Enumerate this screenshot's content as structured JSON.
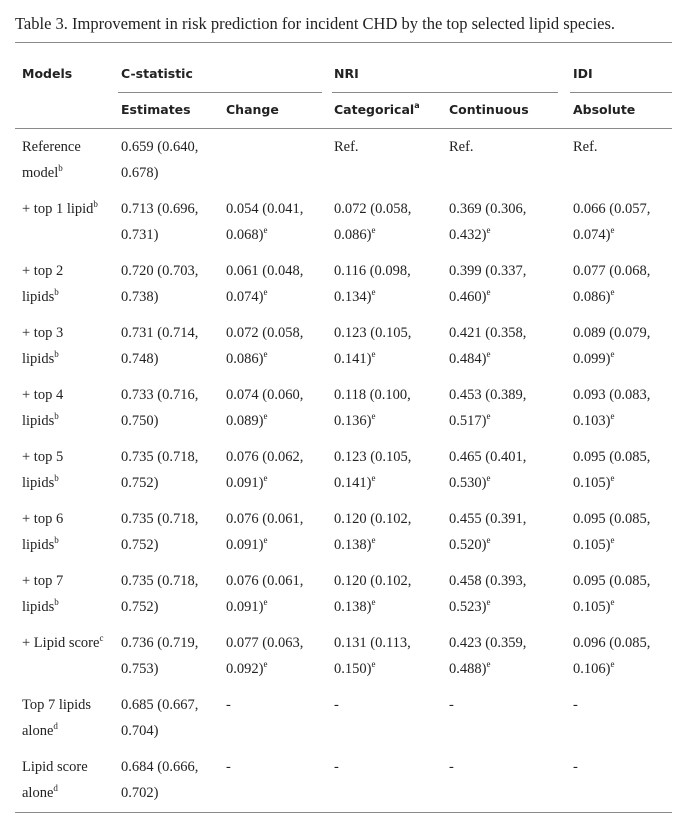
{
  "title": "Table 3. Improvement in risk prediction for incident CHD by the top selected lipid species.",
  "table": {
    "header_groups": [
      "Models",
      "C-statistic",
      "NRI",
      "IDI"
    ],
    "columns": [
      {
        "text": "Estimates"
      },
      {
        "text": "Change"
      },
      {
        "text": "Categorical",
        "sup": "a"
      },
      {
        "text": "Continuous"
      },
      {
        "text": "Absolute"
      }
    ],
    "rows": [
      [
        {
          "text": "Reference model",
          "sup": "b"
        },
        "0.659 (0.640, 0.678)",
        null,
        "Ref.",
        "Ref.",
        "Ref."
      ],
      [
        {
          "text": "+ top 1 lipid",
          "sup": "b"
        },
        "0.713 (0.696, 0.731)",
        {
          "text": "0.054 (0.041, 0.068)",
          "sup": "e"
        },
        {
          "text": "0.072 (0.058, 0.086)",
          "sup": "e"
        },
        {
          "text": "0.369 (0.306, 0.432)",
          "sup": "e"
        },
        {
          "text": "0.066 (0.057, 0.074)",
          "sup": "e"
        }
      ],
      [
        {
          "text": "+ top 2 lipids",
          "sup": "b"
        },
        "0.720 (0.703, 0.738)",
        {
          "text": "0.061 (0.048, 0.074)",
          "sup": "e"
        },
        {
          "text": "0.116 (0.098, 0.134)",
          "sup": "e"
        },
        {
          "text": "0.399 (0.337, 0.460)",
          "sup": "e"
        },
        {
          "text": "0.077 (0.068, 0.086)",
          "sup": "e"
        }
      ],
      [
        {
          "text": "+ top 3 lipids",
          "sup": "b"
        },
        "0.731 (0.714, 0.748)",
        {
          "text": "0.072 (0.058, 0.086)",
          "sup": "e"
        },
        {
          "text": "0.123 (0.105, 0.141)",
          "sup": "e"
        },
        {
          "text": "0.421 (0.358, 0.484)",
          "sup": "e"
        },
        {
          "text": "0.089 (0.079, 0.099)",
          "sup": "e"
        }
      ],
      [
        {
          "text": "+ top 4 lipids",
          "sup": "b"
        },
        "0.733 (0.716, 0.750)",
        {
          "text": "0.074 (0.060, 0.089)",
          "sup": "e"
        },
        {
          "text": "0.118 (0.100, 0.136)",
          "sup": "e"
        },
        {
          "text": "0.453 (0.389, 0.517)",
          "sup": "e"
        },
        {
          "text": "0.093 (0.083, 0.103)",
          "sup": "e"
        }
      ],
      [
        {
          "text": "+ top 5 lipids",
          "sup": "b"
        },
        "0.735 (0.718, 0.752)",
        {
          "text": "0.076 (0.062, 0.091)",
          "sup": "e"
        },
        {
          "text": "0.123 (0.105, 0.141)",
          "sup": "e"
        },
        {
          "text": "0.465 (0.401, 0.530)",
          "sup": "e"
        },
        {
          "text": "0.095 (0.085, 0.105)",
          "sup": "e"
        }
      ],
      [
        {
          "text": "+ top 6 lipids",
          "sup": "b"
        },
        "0.735 (0.718, 0.752)",
        {
          "text": "0.076 (0.061, 0.091)",
          "sup": "e"
        },
        {
          "text": "0.120 (0.102, 0.138)",
          "sup": "e"
        },
        {
          "text": "0.455 (0.391, 0.520)",
          "sup": "e"
        },
        {
          "text": "0.095 (0.085, 0.105)",
          "sup": "e"
        }
      ],
      [
        {
          "text": "+ top 7 lipids",
          "sup": "b"
        },
        "0.735 (0.718, 0.752)",
        {
          "text": "0.076 (0.061, 0.091)",
          "sup": "e"
        },
        {
          "text": "0.120 (0.102, 0.138)",
          "sup": "e"
        },
        {
          "text": "0.458 (0.393, 0.523)",
          "sup": "e"
        },
        {
          "text": "0.095 (0.085, 0.105)",
          "sup": "e"
        }
      ],
      [
        {
          "text": "+ Lipid score",
          "sup": "c"
        },
        "0.736 (0.719, 0.753)",
        {
          "text": "0.077 (0.063, 0.092)",
          "sup": "e"
        },
        {
          "text": "0.131 (0.113, 0.150)",
          "sup": "e"
        },
        {
          "text": "0.423 (0.359, 0.488)",
          "sup": "e"
        },
        {
          "text": "0.096 (0.085, 0.106)",
          "sup": "e"
        }
      ],
      [
        {
          "text": "Top 7 lipids alone",
          "sup": "d"
        },
        "0.685 (0.667, 0.704)",
        "-",
        "-",
        "-",
        "-"
      ],
      [
        {
          "text": "Lipid score alone",
          "sup": "d"
        },
        "0.684 (0.666, 0.702)",
        "-",
        "-",
        "-",
        "-"
      ]
    ]
  }
}
